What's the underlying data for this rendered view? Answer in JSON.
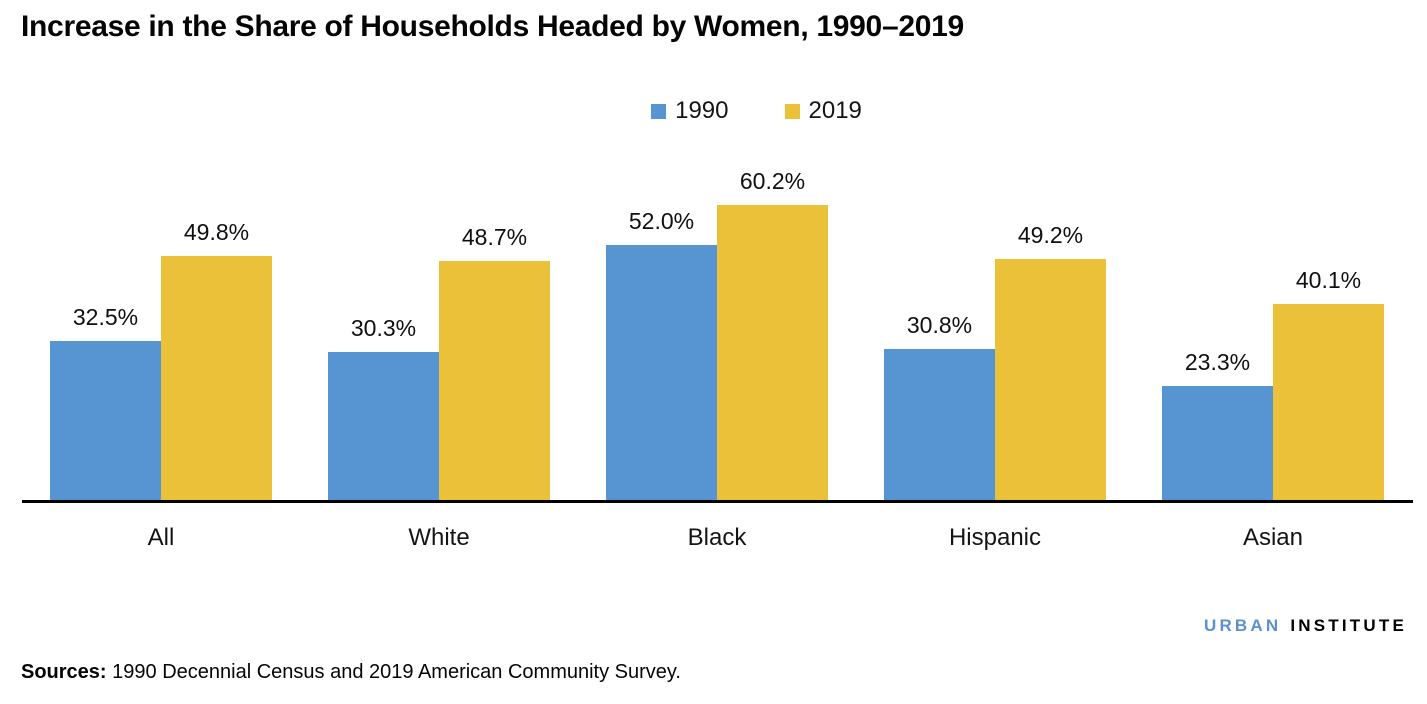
{
  "title": "Increase in the Share of Households Headed by Women, 1990–2019",
  "chart_data": {
    "type": "bar",
    "title": "Increase in the Share of Households Headed by Women, 1990–2019",
    "categories": [
      "All",
      "White",
      "Black",
      "Hispanic",
      "Asian"
    ],
    "series": [
      {
        "name": "1990",
        "color": "#5694D2",
        "values": [
          32.5,
          30.3,
          52.0,
          30.8,
          23.3
        ]
      },
      {
        "name": "2019",
        "color": "#ECC13A",
        "values": [
          49.8,
          48.7,
          60.2,
          49.2,
          40.1
        ]
      }
    ],
    "value_label_format": "percent_one_decimal",
    "xlabel": "",
    "ylabel": "",
    "ylim": [
      0,
      65
    ],
    "grid": false,
    "legend_position": "top-center",
    "data_labels_shown": true
  },
  "footer": {
    "logo": {
      "word1": "URBAN",
      "word2": "INSTITUTE",
      "word1_color": "#5B91CC",
      "word2_color": "#000000"
    },
    "sources_label": "Sources:",
    "sources_text": " 1990 Decennial Census and 2019 American Community Survey."
  }
}
